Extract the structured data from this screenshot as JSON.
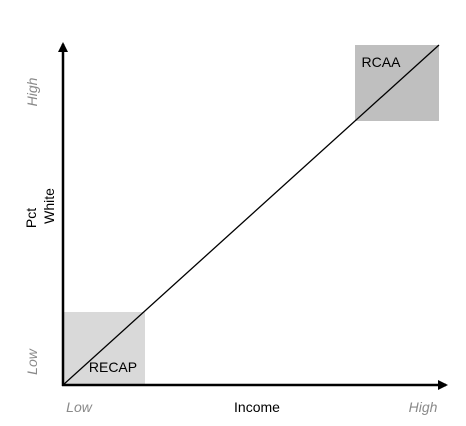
{
  "chart_data": {
    "type": "line",
    "xlabel": "Income",
    "ylabel_line1": "Pct",
    "ylabel_line2": "White",
    "x_ticks": {
      "low": "Low",
      "high": "High"
    },
    "y_ticks": {
      "low": "Low",
      "high": "High"
    },
    "regions": [
      {
        "name": "RECAP",
        "corner": "bottom-left",
        "color": "#d9d9d9"
      },
      {
        "name": "RCAA",
        "corner": "top-right",
        "color": "#bfbfbf"
      }
    ],
    "line": {
      "from": "low-low",
      "to": "high-high"
    },
    "colors": {
      "axis": "#000000",
      "low_region": "#d9d9d9",
      "high_region": "#bfbfbf",
      "tick_text": "#8a8a8a"
    }
  }
}
